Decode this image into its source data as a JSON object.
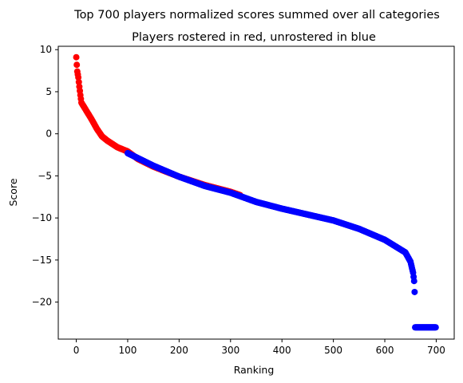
{
  "chart_data": {
    "type": "scatter",
    "title": "Top 700 players normalized scores summed over all categories",
    "subtitle": "Players rostered in red, unrostered in blue",
    "xlabel": "Ranking",
    "ylabel": "Score",
    "xlim": [
      -35,
      735
    ],
    "ylim": [
      -24.4,
      10.4
    ],
    "xticks": [
      0,
      100,
      200,
      300,
      400,
      500,
      600,
      700
    ],
    "yticks": [
      10,
      5,
      0,
      -5,
      -10,
      -15,
      -20
    ],
    "grid": false,
    "legend": "none",
    "series": [
      {
        "color": "#ff0000",
        "range": [
          0,
          319
        ],
        "profile": [
          [
            0,
            9.1
          ],
          [
            1,
            8.2
          ],
          [
            2,
            7.4
          ],
          [
            4,
            6.7
          ],
          [
            6,
            5.6
          ],
          [
            8,
            4.6
          ],
          [
            10,
            3.7
          ],
          [
            15,
            3.2
          ],
          [
            20,
            2.7
          ],
          [
            30,
            1.7
          ],
          [
            40,
            0.6
          ],
          [
            50,
            -0.3
          ],
          [
            60,
            -0.8
          ],
          [
            70,
            -1.2
          ],
          [
            80,
            -1.6
          ],
          [
            100,
            -2.1
          ],
          [
            120,
            -3.0
          ],
          [
            150,
            -3.9
          ],
          [
            200,
            -5.1
          ],
          [
            250,
            -6.1
          ],
          [
            300,
            -6.9
          ],
          [
            319,
            -7.3
          ]
        ]
      },
      {
        "color": "#0000ff",
        "range": [
          100,
          699
        ],
        "profile": [
          [
            100,
            -2.3
          ],
          [
            150,
            -3.8
          ],
          [
            200,
            -5.1
          ],
          [
            250,
            -6.2
          ],
          [
            300,
            -7.0
          ],
          [
            350,
            -8.1
          ],
          [
            400,
            -8.9
          ],
          [
            450,
            -9.6
          ],
          [
            500,
            -10.3
          ],
          [
            550,
            -11.3
          ],
          [
            600,
            -12.6
          ],
          [
            640,
            -14.1
          ],
          [
            650,
            -15.2
          ],
          [
            655,
            -16.5
          ],
          [
            657,
            -17.5
          ],
          [
            658,
            -18.8
          ],
          [
            659,
            -23.0
          ],
          [
            699,
            -23.0
          ]
        ]
      }
    ]
  }
}
